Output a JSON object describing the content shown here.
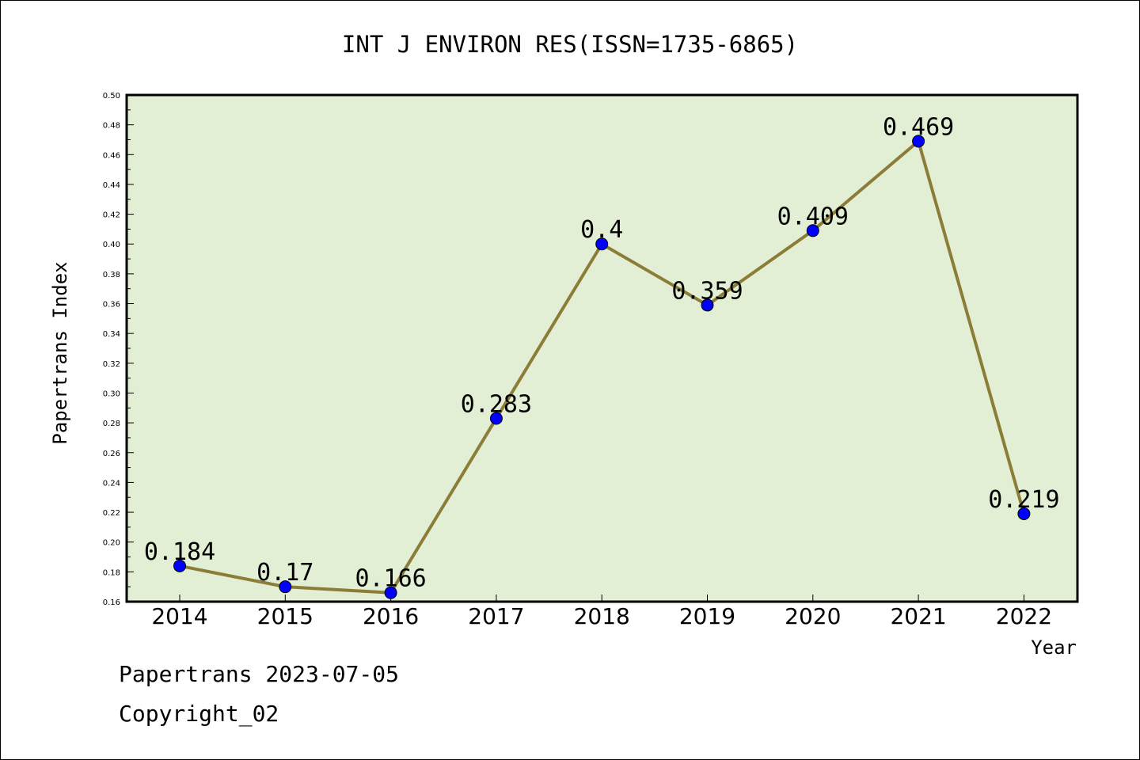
{
  "colors": {
    "plot_background": "#e2efd5",
    "line": "#8b7d38",
    "marker": "#0000ff",
    "axis": "#000000",
    "page_background": "#ffffff"
  },
  "footer": {
    "line1": "Papertrans 2023-07-05",
    "line2": "Copyright_02"
  },
  "chart_data": {
    "type": "line",
    "title": "INT J ENVIRON RES(ISSN=1735-6865)",
    "xlabel": "Year",
    "ylabel": "Papertrans Index",
    "categories": [
      "2014",
      "2015",
      "2016",
      "2017",
      "2018",
      "2019",
      "2020",
      "2021",
      "2022"
    ],
    "series": [
      {
        "values": [
          0.184,
          0.17,
          0.166,
          0.283,
          0.4,
          0.359,
          0.409,
          0.469,
          0.219
        ],
        "data_labels": [
          "0.184",
          "0.17",
          "0.166",
          "0.283",
          "0.4",
          "0.359",
          "0.409",
          "0.469",
          "0.219"
        ]
      }
    ],
    "ylim": [
      0.16,
      0.5
    ],
    "yticks": [
      "0.16",
      "0.18",
      "0.20",
      "0.22",
      "0.24",
      "0.26",
      "0.28",
      "0.30",
      "0.32",
      "0.34",
      "0.36",
      "0.38",
      "0.40",
      "0.42",
      "0.44",
      "0.46",
      "0.48",
      "0.50"
    ],
    "grid": false,
    "legend": "none"
  }
}
